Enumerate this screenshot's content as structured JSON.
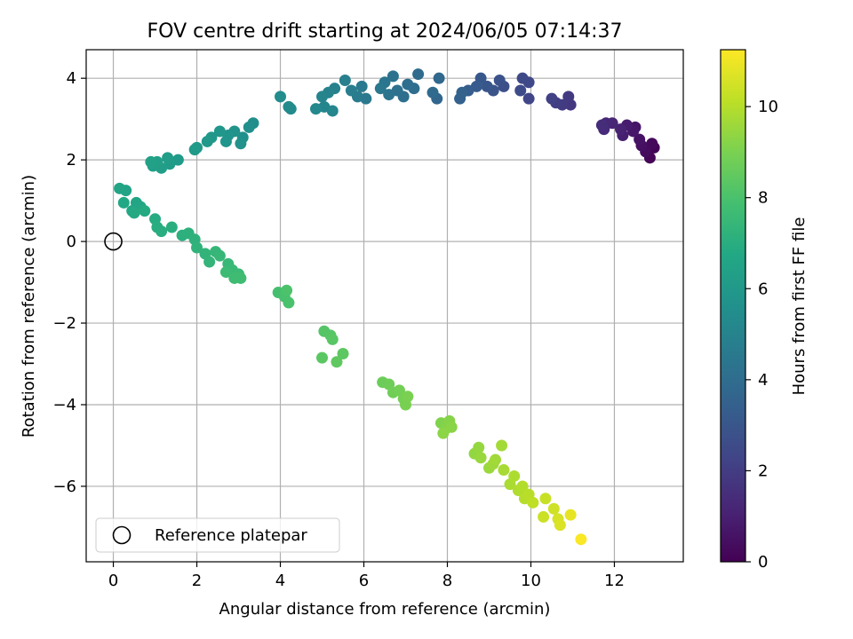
{
  "chart_data": {
    "type": "scatter",
    "title": "FOV centre drift starting at 2024/06/05 07:14:37",
    "xlabel": "Angular distance from reference (arcmin)",
    "ylabel": "Rotation from reference (arcmin)",
    "xlim": [
      -0.65,
      13.65
    ],
    "ylim": [
      -7.85,
      4.7
    ],
    "xticks": [
      0,
      2,
      4,
      6,
      8,
      10,
      12
    ],
    "yticks": [
      -6,
      -4,
      -2,
      0,
      2,
      4
    ],
    "xtick_labels": [
      "0",
      "2",
      "4",
      "6",
      "8",
      "10",
      "12"
    ],
    "ytick_labels": [
      "−6",
      "−4",
      "−2",
      "0",
      "2",
      "4"
    ],
    "grid": true,
    "colormap": "viridis",
    "colorbar": {
      "label": "Hours from first FF file",
      "range": [
        0,
        11.25
      ],
      "ticks": [
        0,
        2,
        4,
        6,
        8,
        10
      ],
      "tick_labels": [
        "0",
        "2",
        "4",
        "6",
        "8",
        "10"
      ]
    },
    "legend": {
      "position": "lower-left",
      "label": "Reference platepar"
    },
    "reference_point": {
      "x": 0,
      "y": 0
    },
    "points": [
      [
        12.95,
        2.3,
        0.1
      ],
      [
        12.85,
        2.05,
        0.15
      ],
      [
        12.9,
        2.4,
        0.25
      ],
      [
        12.75,
        2.2,
        0.35
      ],
      [
        12.65,
        2.35,
        0.45
      ],
      [
        12.6,
        2.5,
        0.55
      ],
      [
        12.5,
        2.8,
        0.65
      ],
      [
        12.45,
        2.7,
        0.75
      ],
      [
        12.3,
        2.85,
        0.85
      ],
      [
        12.2,
        2.6,
        0.95
      ],
      [
        12.15,
        2.75,
        1.05
      ],
      [
        11.95,
        2.9,
        1.15
      ],
      [
        11.8,
        2.9,
        1.25
      ],
      [
        11.75,
        2.75,
        1.35
      ],
      [
        11.7,
        2.85,
        1.45
      ],
      [
        10.95,
        3.35,
        1.8
      ],
      [
        10.9,
        3.55,
        1.85
      ],
      [
        10.75,
        3.35,
        1.95
      ],
      [
        10.6,
        3.4,
        2.05
      ],
      [
        10.5,
        3.5,
        2.15
      ],
      [
        9.95,
        3.5,
        2.35
      ],
      [
        9.95,
        3.9,
        2.4
      ],
      [
        9.8,
        4.0,
        2.5
      ],
      [
        9.75,
        3.7,
        2.55
      ],
      [
        9.35,
        3.8,
        2.7
      ],
      [
        9.25,
        3.95,
        2.8
      ],
      [
        9.1,
        3.7,
        2.9
      ],
      [
        8.95,
        3.8,
        3.0
      ],
      [
        8.8,
        4.0,
        3.1
      ],
      [
        8.7,
        3.8,
        3.2
      ],
      [
        8.5,
        3.7,
        3.3
      ],
      [
        8.3,
        3.5,
        3.45
      ],
      [
        8.35,
        3.65,
        3.55
      ],
      [
        7.75,
        3.5,
        3.7
      ],
      [
        7.8,
        4.0,
        3.8
      ],
      [
        7.65,
        3.65,
        3.85
      ],
      [
        7.3,
        4.1,
        3.9
      ],
      [
        7.2,
        3.75,
        4.0
      ],
      [
        7.05,
        3.85,
        4.05
      ],
      [
        6.95,
        3.55,
        4.1
      ],
      [
        6.8,
        3.7,
        4.2
      ],
      [
        6.7,
        4.05,
        4.25
      ],
      [
        6.6,
        3.6,
        4.3
      ],
      [
        6.5,
        3.9,
        4.35
      ],
      [
        6.4,
        3.75,
        4.45
      ],
      [
        6.05,
        3.5,
        4.55
      ],
      [
        5.95,
        3.8,
        4.6
      ],
      [
        5.85,
        3.55,
        4.65
      ],
      [
        5.7,
        3.7,
        4.75
      ],
      [
        5.55,
        3.95,
        4.8
      ],
      [
        5.3,
        3.75,
        4.9
      ],
      [
        5.15,
        3.65,
        5.0
      ],
      [
        5.0,
        3.55,
        5.05
      ],
      [
        5.05,
        3.3,
        5.1
      ],
      [
        5.25,
        3.2,
        5.15
      ],
      [
        4.85,
        3.25,
        5.2
      ],
      [
        4.25,
        3.25,
        5.3
      ],
      [
        4.2,
        3.3,
        5.35
      ],
      [
        4.0,
        3.55,
        5.4
      ],
      [
        3.35,
        2.9,
        5.5
      ],
      [
        3.25,
        2.8,
        5.55
      ],
      [
        3.1,
        2.55,
        5.6
      ],
      [
        3.05,
        2.4,
        5.65
      ],
      [
        2.9,
        2.7,
        5.7
      ],
      [
        2.75,
        2.6,
        5.75
      ],
      [
        2.7,
        2.45,
        5.8
      ],
      [
        2.55,
        2.7,
        5.85
      ],
      [
        2.35,
        2.55,
        5.9
      ],
      [
        2.25,
        2.45,
        5.95
      ],
      [
        2.0,
        2.3,
        6.0
      ],
      [
        1.95,
        2.25,
        6.05
      ],
      [
        1.55,
        2.0,
        6.1
      ],
      [
        1.35,
        1.9,
        6.15
      ],
      [
        1.3,
        2.05,
        6.2
      ],
      [
        1.15,
        1.8,
        6.25
      ],
      [
        1.05,
        1.95,
        6.3
      ],
      [
        0.95,
        1.85,
        6.35
      ],
      [
        0.9,
        1.95,
        6.4
      ],
      [
        0.3,
        1.25,
        6.5
      ],
      [
        0.15,
        1.3,
        6.55
      ],
      [
        0.55,
        0.95,
        6.6
      ],
      [
        0.65,
        0.85,
        6.65
      ],
      [
        0.45,
        0.75,
        6.7
      ],
      [
        0.25,
        0.95,
        6.75
      ],
      [
        0.5,
        0.7,
        6.8
      ],
      [
        0.75,
        0.75,
        6.85
      ],
      [
        1.0,
        0.55,
        6.9
      ],
      [
        1.05,
        0.35,
        6.95
      ],
      [
        1.15,
        0.25,
        7.0
      ],
      [
        1.4,
        0.35,
        7.05
      ],
      [
        1.65,
        0.15,
        7.1
      ],
      [
        1.8,
        0.2,
        7.15
      ],
      [
        1.95,
        0.05,
        7.2
      ],
      [
        2.0,
        -0.15,
        7.25
      ],
      [
        2.2,
        -0.3,
        7.3
      ],
      [
        2.3,
        -0.5,
        7.35
      ],
      [
        2.45,
        -0.25,
        7.4
      ],
      [
        2.55,
        -0.35,
        7.45
      ],
      [
        2.75,
        -0.55,
        7.5
      ],
      [
        2.85,
        -0.7,
        7.55
      ],
      [
        3.0,
        -0.8,
        7.6
      ],
      [
        2.7,
        -0.75,
        7.65
      ],
      [
        2.9,
        -0.9,
        7.7
      ],
      [
        3.05,
        -0.9,
        7.75
      ],
      [
        3.95,
        -1.25,
        7.9
      ],
      [
        4.1,
        -1.35,
        7.95
      ],
      [
        4.2,
        -1.5,
        8.0
      ],
      [
        4.15,
        -1.2,
        8.05
      ],
      [
        5.05,
        -2.2,
        8.2
      ],
      [
        5.2,
        -2.3,
        8.25
      ],
      [
        5.25,
        -2.4,
        8.3
      ],
      [
        5.0,
        -2.85,
        8.35
      ],
      [
        5.5,
        -2.75,
        8.4
      ],
      [
        5.35,
        -2.95,
        8.45
      ],
      [
        6.45,
        -3.45,
        8.7
      ],
      [
        6.6,
        -3.5,
        8.75
      ],
      [
        6.7,
        -3.7,
        8.8
      ],
      [
        6.85,
        -3.65,
        8.85
      ],
      [
        6.95,
        -3.85,
        8.9
      ],
      [
        7.0,
        -4.0,
        8.95
      ],
      [
        7.05,
        -3.8,
        9.0
      ],
      [
        7.85,
        -4.45,
        9.1
      ],
      [
        7.95,
        -4.6,
        9.15
      ],
      [
        8.05,
        -4.4,
        9.2
      ],
      [
        8.1,
        -4.55,
        9.25
      ],
      [
        7.9,
        -4.7,
        9.3
      ],
      [
        8.65,
        -5.2,
        9.4
      ],
      [
        8.75,
        -5.05,
        9.45
      ],
      [
        8.8,
        -5.3,
        9.5
      ],
      [
        9.0,
        -5.55,
        9.55
      ],
      [
        9.1,
        -5.45,
        9.6
      ],
      [
        9.15,
        -5.35,
        9.65
      ],
      [
        9.3,
        -5.0,
        9.7
      ],
      [
        9.35,
        -5.6,
        9.75
      ],
      [
        9.5,
        -5.95,
        9.8
      ],
      [
        9.6,
        -5.75,
        9.85
      ],
      [
        9.7,
        -6.1,
        9.9
      ],
      [
        9.8,
        -6.0,
        9.95
      ],
      [
        9.85,
        -6.3,
        10.0
      ],
      [
        9.95,
        -6.2,
        10.05
      ],
      [
        10.05,
        -6.4,
        10.15
      ],
      [
        10.35,
        -6.3,
        10.3
      ],
      [
        10.3,
        -6.75,
        10.35
      ],
      [
        10.55,
        -6.55,
        10.45
      ],
      [
        10.65,
        -6.8,
        10.55
      ],
      [
        10.7,
        -6.95,
        10.65
      ],
      [
        10.95,
        -6.7,
        10.85
      ],
      [
        11.2,
        -7.3,
        11.2
      ]
    ]
  }
}
